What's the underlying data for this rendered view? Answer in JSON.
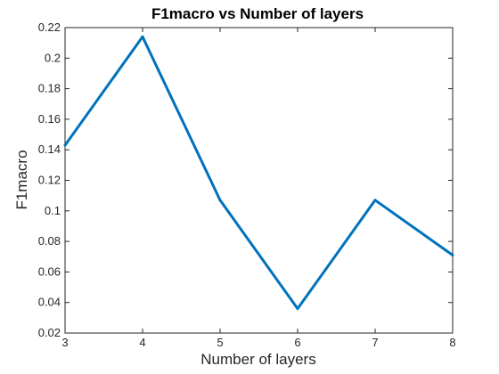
{
  "chart_data": {
    "type": "line",
    "title": "F1macro vs Number of layers",
    "xlabel": "Number of layers",
    "ylabel": "F1macro",
    "x": [
      3,
      4,
      5,
      6,
      7,
      8
    ],
    "series": [
      {
        "values": [
          0.143,
          0.214,
          0.107,
          0.036,
          0.107,
          0.071
        ],
        "color": "#0072BD"
      }
    ],
    "xlim": [
      3,
      8
    ],
    "ylim": [
      0.02,
      0.22
    ],
    "xticks": [
      "3",
      "4",
      "5",
      "6",
      "7",
      "8"
    ],
    "yticks": [
      "0.02",
      "0.04",
      "0.06",
      "0.08",
      "0.1",
      "0.12",
      "0.14",
      "0.16",
      "0.18",
      "0.2",
      "0.22"
    ],
    "grid": false,
    "legend": "none"
  }
}
